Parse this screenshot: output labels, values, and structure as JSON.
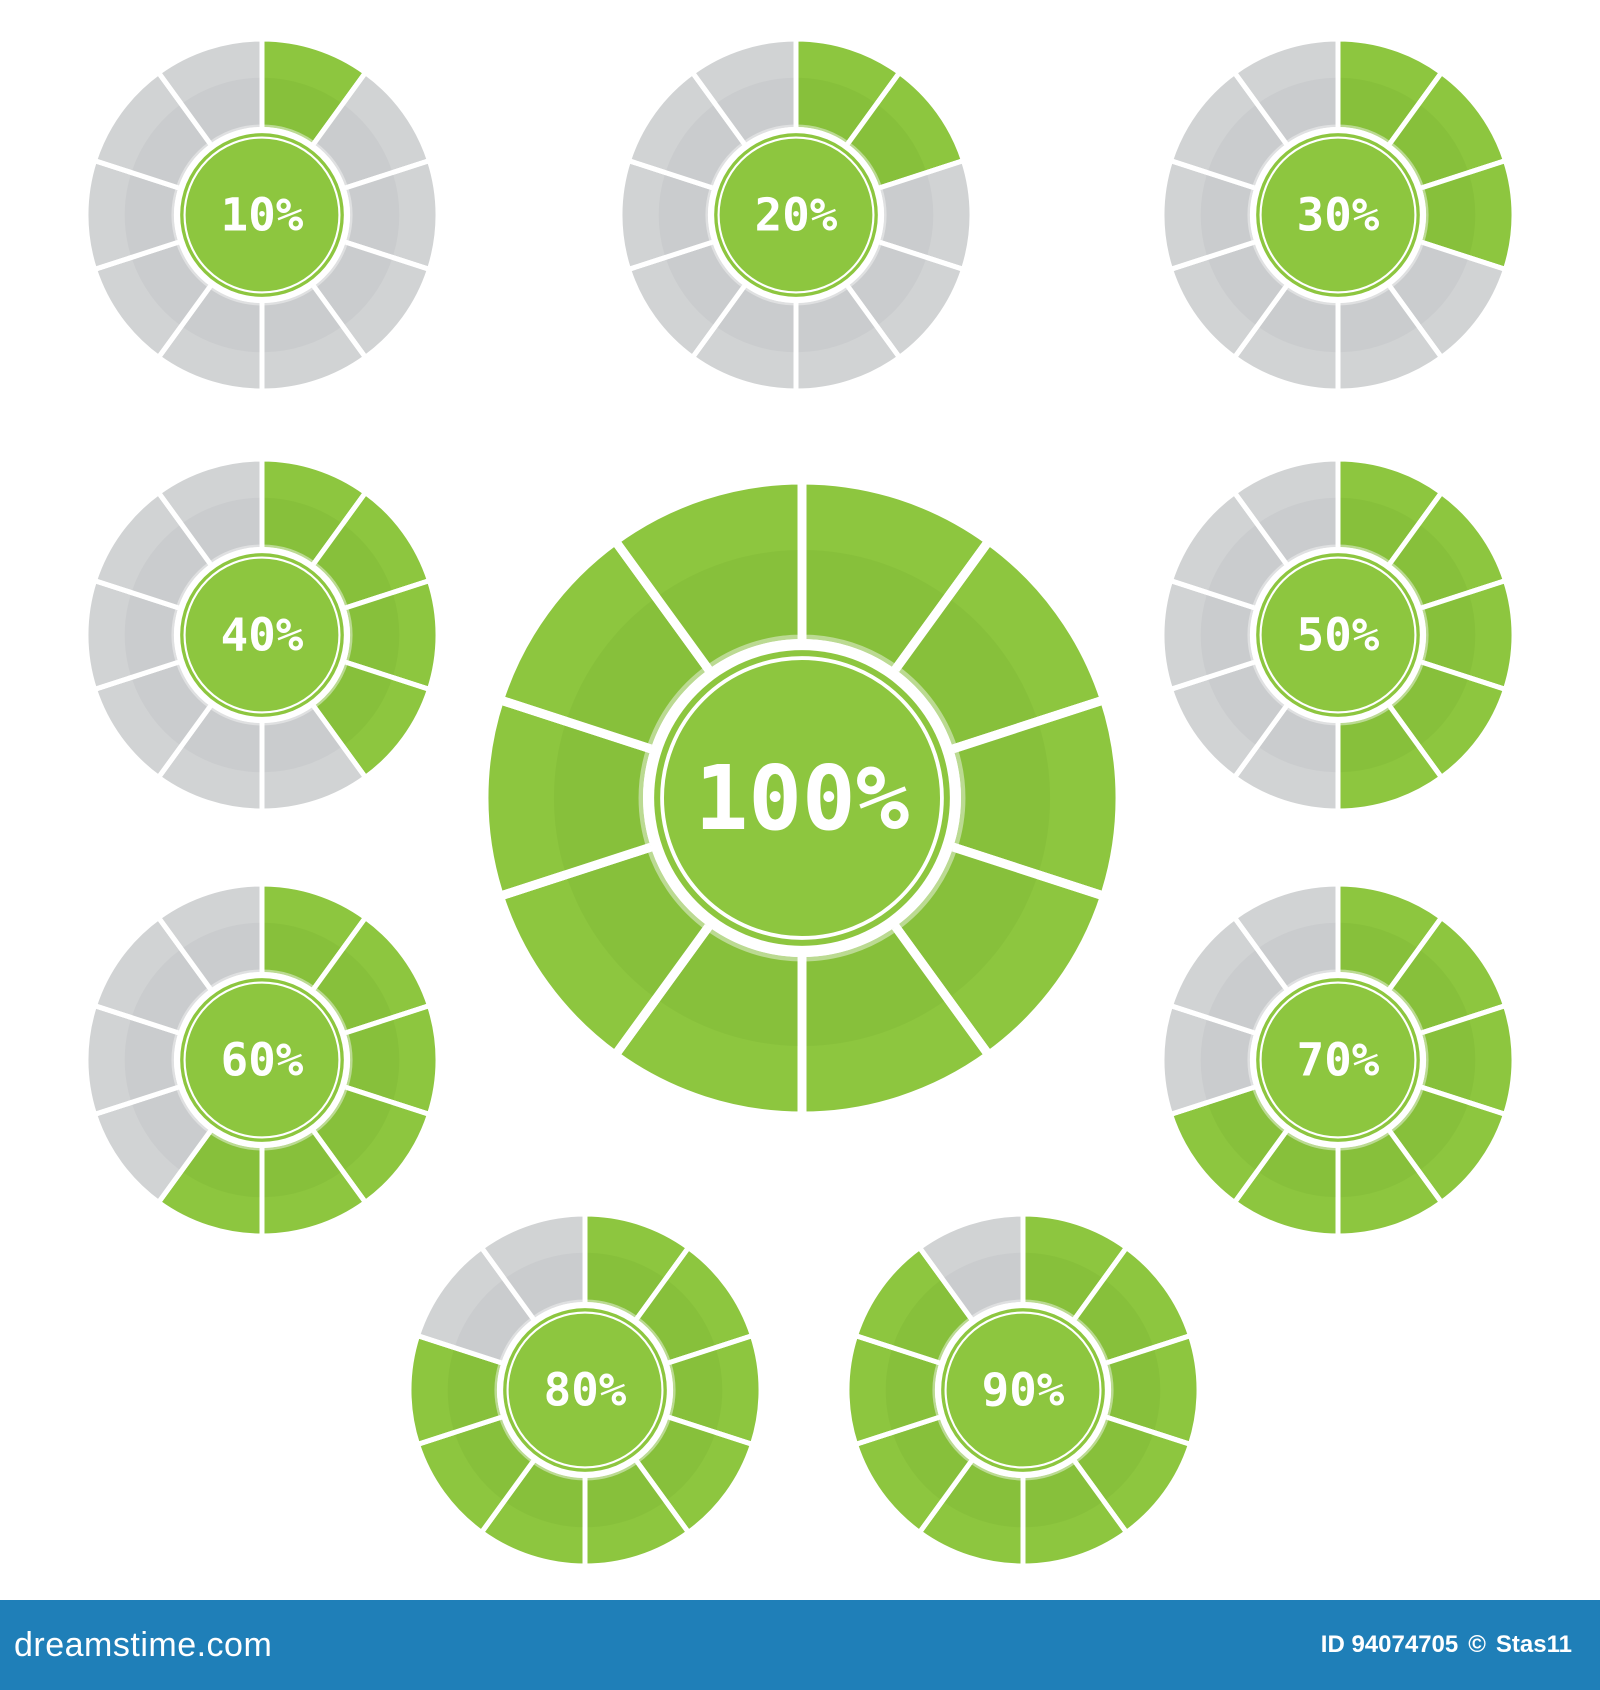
{
  "colors": {
    "filled": "#8dc63f",
    "filled_inner": "#83bb38",
    "empty": "#d1d3d4",
    "empty_inner": "#c4c6c8",
    "separator": "#ffffff",
    "footer_bg": "#1f7fb8"
  },
  "gauges": [
    {
      "label": "10%",
      "value": 10,
      "segments": 10
    },
    {
      "label": "20%",
      "value": 20,
      "segments": 10
    },
    {
      "label": "30%",
      "value": 30,
      "segments": 10
    },
    {
      "label": "40%",
      "value": 40,
      "segments": 10
    },
    {
      "label": "100%",
      "value": 100,
      "segments": 10
    },
    {
      "label": "50%",
      "value": 50,
      "segments": 10
    },
    {
      "label": "60%",
      "value": 60,
      "segments": 10
    },
    {
      "label": "70%",
      "value": 70,
      "segments": 10
    },
    {
      "label": "80%",
      "value": 80,
      "segments": 10
    },
    {
      "label": "90%",
      "value": 90,
      "segments": 10
    }
  ],
  "footer": {
    "brand": "dreamstime.com",
    "id": "ID 94074705",
    "separator": "©",
    "author": "Stas11"
  }
}
